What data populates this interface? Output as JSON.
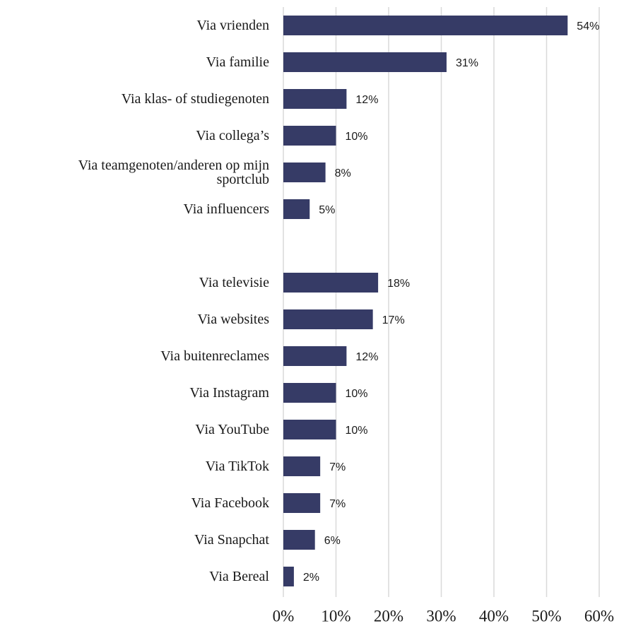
{
  "chart_data": {
    "type": "bar",
    "orientation": "horizontal",
    "categories": [
      "Via vrienden",
      "Via familie",
      "Via klas- of studiegenoten",
      "Via collega’s",
      "Via teamgenoten/anderen op mijn sportclub",
      "Via influencers",
      null,
      "Via televisie",
      "Via websites",
      "Via buitenreclames",
      "Via Instagram",
      "Via YouTube",
      "Via TikTok",
      "Via Facebook",
      "Via Snapchat",
      "Via Bereal"
    ],
    "values": [
      54,
      31,
      12,
      10,
      8,
      5,
      null,
      18,
      17,
      12,
      10,
      10,
      7,
      7,
      6,
      2
    ],
    "value_labels": [
      "54%",
      "31%",
      "12%",
      "10%",
      "8%",
      "5%",
      null,
      "18%",
      "17%",
      "12%",
      "10%",
      "10%",
      "7%",
      "7%",
      "6%",
      "2%"
    ],
    "color": "#363b66",
    "xlim": [
      0,
      60
    ],
    "xticks": [
      {
        "value": 0,
        "label": "0%"
      },
      {
        "value": 10,
        "label": "10%"
      },
      {
        "value": 20,
        "label": "20%"
      },
      {
        "value": 30,
        "label": "30%"
      },
      {
        "value": 40,
        "label": "40%"
      },
      {
        "value": 50,
        "label": "50%"
      },
      {
        "value": 60,
        "label": "60%"
      }
    ],
    "grid": true
  }
}
